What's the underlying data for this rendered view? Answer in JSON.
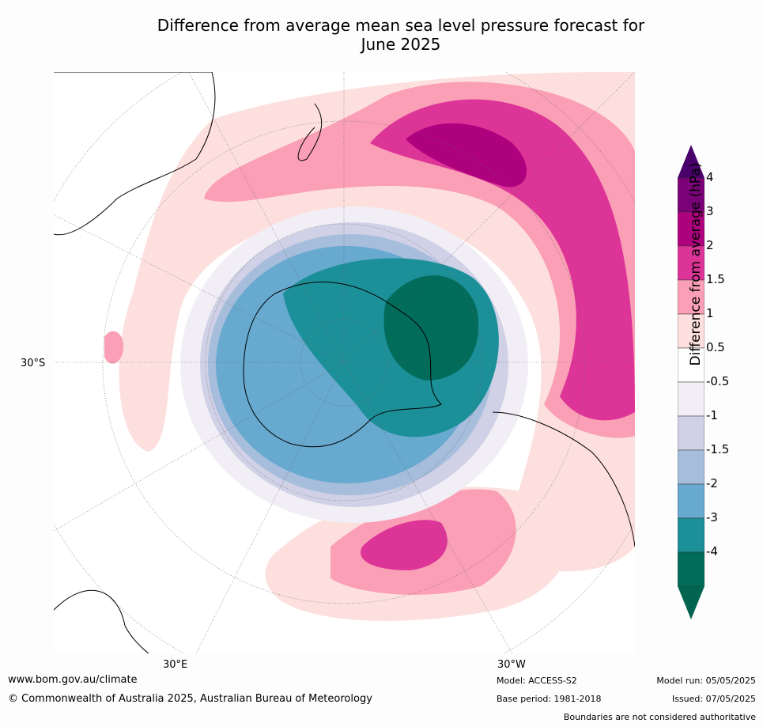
{
  "title_line1": "Difference from average mean sea level pressure forecast for",
  "title_line2": "June 2025",
  "map": {
    "lat_label": "30°S",
    "lon_label_left": "30°E",
    "lon_label_right": "30°W"
  },
  "colorbar": {
    "title": "Difference from average (hPa)",
    "ticks": [
      "4",
      "3",
      "2",
      "1.5",
      "1",
      "0.5",
      "-0.5",
      "-1",
      "-1.5",
      "-2",
      "-3",
      "-4"
    ],
    "colors": [
      "#7a0177",
      "#ae017e",
      "#dd3497",
      "#fa9fb5",
      "#fde0dd",
      "#ffffff",
      "#f2eef5",
      "#d0d1e6",
      "#a6bddb",
      "#67a9cf",
      "#1c9099",
      "#016c59"
    ],
    "over_color": "#49006a",
    "under_color": "#016450"
  },
  "footer": {
    "website": "www.bom.gov.au/climate",
    "copyright": "© Commonwealth of Australia 2025, Australian Bureau of Meteorology",
    "model": "Model: ACCESS-S2",
    "base_period": "Base period: 1981-2018",
    "model_run": "Model run: 05/05/2025",
    "issued": "Issued: 07/05/2025",
    "disclaimer": "Boundaries are not considered authoritative"
  }
}
